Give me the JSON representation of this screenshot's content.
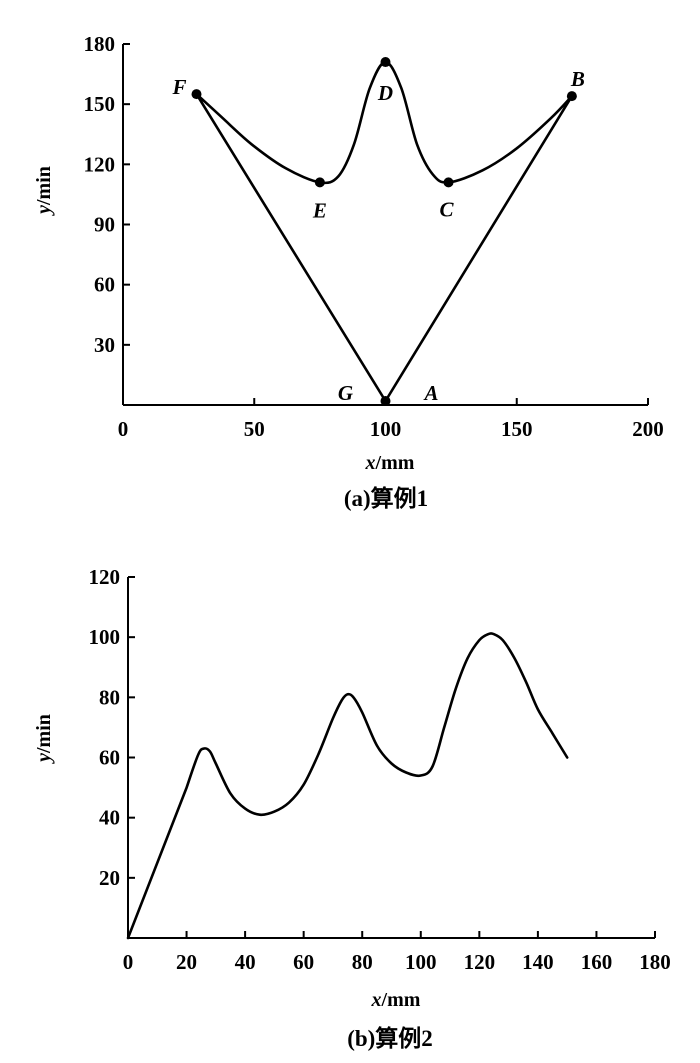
{
  "chart_data": [
    {
      "type": "line",
      "caption": "(a)算例1",
      "xlabel_var": "x",
      "xlabel_unit": "/mm",
      "ylabel_var": "y",
      "ylabel_unit": "/min",
      "xlim": [
        0,
        200
      ],
      "ylim": [
        0,
        180
      ],
      "xticks": [
        0,
        50,
        100,
        150,
        200
      ],
      "yticks": [
        30,
        60,
        90,
        120,
        150,
        180
      ],
      "grid": false,
      "series": [
        {
          "x": [
            100,
            171,
            163,
            150,
            137,
            124,
            118,
            112,
            106,
            100,
            94,
            88,
            82,
            75,
            62,
            49,
            38,
            28,
            100
          ],
          "y": [
            2,
            154,
            143,
            128,
            117,
            111,
            115,
            130,
            158,
            171,
            158,
            130,
            114,
            111,
            118,
            130,
            143,
            155,
            2
          ]
        }
      ],
      "points": [
        {
          "label": "A",
          "x": 100,
          "y": 2
        },
        {
          "label": "B",
          "x": 171,
          "y": 154
        },
        {
          "label": "C",
          "x": 124,
          "y": 111
        },
        {
          "label": "D",
          "x": 100,
          "y": 171
        },
        {
          "label": "E",
          "x": 75,
          "y": 111
        },
        {
          "label": "F",
          "x": 28,
          "y": 155
        },
        {
          "label": "G",
          "x": 100,
          "y": 2
        }
      ]
    },
    {
      "type": "line",
      "caption": "(b)算例2",
      "xlabel_var": "x",
      "xlabel_unit": "/mm",
      "ylabel_var": "y",
      "ylabel_unit": "/min",
      "xlim": [
        0,
        180
      ],
      "ylim": [
        0,
        120
      ],
      "xticks": [
        0,
        20,
        40,
        60,
        80,
        100,
        120,
        140,
        160,
        180
      ],
      "yticks": [
        20,
        40,
        60,
        80,
        100,
        120
      ],
      "grid": false,
      "series": [
        {
          "x": [
            0,
            10,
            20,
            24,
            26,
            28,
            30,
            35,
            40,
            45,
            50,
            55,
            60,
            65,
            70,
            73,
            75,
            77,
            80,
            85,
            90,
            95,
            100,
            104,
            108,
            112,
            116,
            120,
            123,
            125,
            128,
            132,
            136,
            140,
            145,
            150
          ],
          "y": [
            0,
            25,
            50,
            61,
            63,
            62,
            58,
            48,
            43,
            41,
            42,
            45,
            51,
            61,
            73,
            79,
            81,
            80,
            75,
            64,
            58,
            55,
            54,
            57,
            70,
            83,
            93,
            99,
            101,
            101,
            99,
            93,
            85,
            76,
            68,
            60
          ]
        }
      ]
    }
  ]
}
